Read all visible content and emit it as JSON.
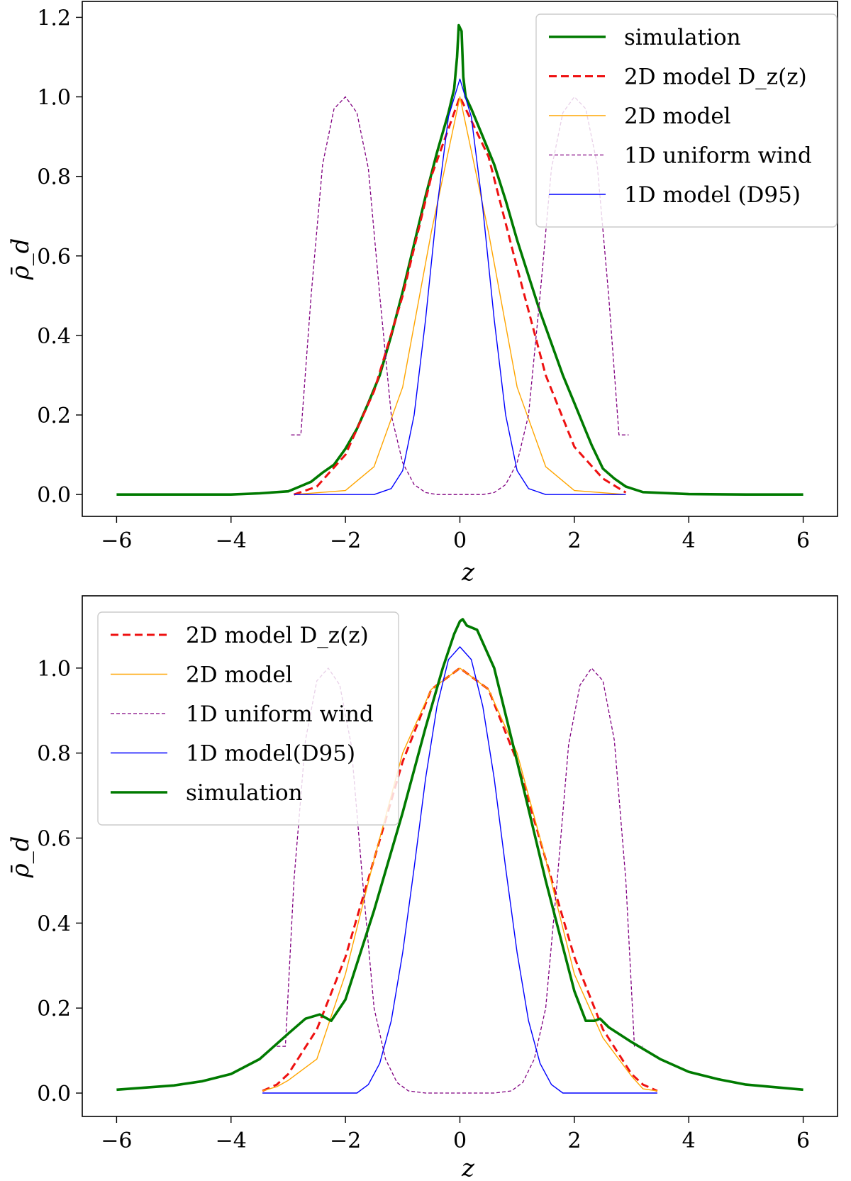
{
  "chart_data": [
    {
      "type": "line",
      "panel": "top",
      "xlabel": "z",
      "ylabel": "ρ̄_d",
      "xlim": [
        -6.6,
        6.6
      ],
      "ylim": [
        -0.055,
        1.24
      ],
      "xticks": [
        -6,
        -4,
        -2,
        0,
        2,
        4,
        6
      ],
      "xtick_labels": [
        "−6",
        "−4",
        "−2",
        "0",
        "2",
        "4",
        "6"
      ],
      "yticks": [
        0.0,
        0.2,
        0.4,
        0.6,
        0.8,
        1.0,
        1.2
      ],
      "ytick_labels": [
        "0.0",
        "0.2",
        "0.4",
        "0.6",
        "0.8",
        "1.0",
        "1.2"
      ],
      "legend_position": "upper right",
      "series": [
        {
          "name": "simulation",
          "legend_label": "simulation",
          "color": "#007a00",
          "style": "solid-thick",
          "points": [
            [
              -6,
              0
            ],
            [
              -5,
              0
            ],
            [
              -4,
              0
            ],
            [
              -3.5,
              0.003
            ],
            [
              -3,
              0.008
            ],
            [
              -2.8,
              0.02
            ],
            [
              -2.6,
              0.032
            ],
            [
              -2.4,
              0.055
            ],
            [
              -2.2,
              0.075
            ],
            [
              -2,
              0.115
            ],
            [
              -1.8,
              0.165
            ],
            [
              -1.6,
              0.23
            ],
            [
              -1.4,
              0.3
            ],
            [
              -1.2,
              0.4
            ],
            [
              -1,
              0.51
            ],
            [
              -0.8,
              0.63
            ],
            [
              -0.6,
              0.75
            ],
            [
              -0.4,
              0.86
            ],
            [
              -0.2,
              0.96
            ],
            [
              -0.1,
              1.02
            ],
            [
              -0.05,
              1.1
            ],
            [
              -0.02,
              1.18
            ],
            [
              0.03,
              1.165
            ],
            [
              0.06,
              1.05
            ],
            [
              0.1,
              1.0
            ],
            [
              0.2,
              0.97
            ],
            [
              0.4,
              0.9
            ],
            [
              0.6,
              0.83
            ],
            [
              0.8,
              0.74
            ],
            [
              1,
              0.64
            ],
            [
              1.2,
              0.55
            ],
            [
              1.4,
              0.46
            ],
            [
              1.6,
              0.38
            ],
            [
              1.8,
              0.3
            ],
            [
              2,
              0.23
            ],
            [
              2.2,
              0.16
            ],
            [
              2.3,
              0.125
            ],
            [
              2.4,
              0.095
            ],
            [
              2.5,
              0.065
            ],
            [
              2.7,
              0.04
            ],
            [
              2.9,
              0.02
            ],
            [
              3.2,
              0.006
            ],
            [
              4,
              0.001
            ],
            [
              5,
              0
            ],
            [
              6,
              0
            ]
          ]
        },
        {
          "name": "2d-model-dz",
          "legend_label": "2D model D_z(z)",
          "color": "#ee1111",
          "style": "dashed-thick",
          "points": [
            [
              -2.9,
              0
            ],
            [
              -2.5,
              0.02
            ],
            [
              -2,
              0.1
            ],
            [
              -1.5,
              0.26
            ],
            [
              -1,
              0.5
            ],
            [
              -0.5,
              0.8
            ],
            [
              0,
              1.0
            ],
            [
              0.5,
              0.85
            ],
            [
              1,
              0.57
            ],
            [
              1.5,
              0.3
            ],
            [
              2,
              0.12
            ],
            [
              2.5,
              0.04
            ],
            [
              2.9,
              0.005
            ]
          ]
        },
        {
          "name": "2d-model",
          "legend_label": "2D model",
          "color": "#ffa500",
          "style": "solid-thin",
          "points": [
            [
              -2.9,
              0
            ],
            [
              -2,
              0.01
            ],
            [
              -1.5,
              0.07
            ],
            [
              -1,
              0.27
            ],
            [
              -0.5,
              0.66
            ],
            [
              0,
              1.0
            ],
            [
              0.5,
              0.66
            ],
            [
              1,
              0.27
            ],
            [
              1.5,
              0.07
            ],
            [
              2,
              0.01
            ],
            [
              2.9,
              0
            ]
          ]
        },
        {
          "name": "1d-uniform-wind",
          "legend_label": "1D uniform wind",
          "color": "#800080",
          "style": "dashed-thin",
          "points": [
            [
              -2.95,
              0.15
            ],
            [
              -2.78,
              0.15
            ],
            [
              -2.6,
              0.5
            ],
            [
              -2.4,
              0.83
            ],
            [
              -2.2,
              0.97
            ],
            [
              -2,
              1.0
            ],
            [
              -1.8,
              0.96
            ],
            [
              -1.6,
              0.82
            ],
            [
              -1.4,
              0.5
            ],
            [
              -1.2,
              0.2
            ],
            [
              -1,
              0.08
            ],
            [
              -0.8,
              0.025
            ],
            [
              -0.6,
              0.005
            ],
            [
              -0.4,
              0
            ],
            [
              0,
              0
            ],
            [
              0.4,
              0
            ],
            [
              0.6,
              0.005
            ],
            [
              0.8,
              0.025
            ],
            [
              1,
              0.08
            ],
            [
              1.2,
              0.2
            ],
            [
              1.4,
              0.5
            ],
            [
              1.6,
              0.82
            ],
            [
              1.8,
              0.96
            ],
            [
              2,
              1.0
            ],
            [
              2.2,
              0.97
            ],
            [
              2.4,
              0.83
            ],
            [
              2.6,
              0.5
            ],
            [
              2.78,
              0.15
            ],
            [
              2.95,
              0.15
            ]
          ]
        },
        {
          "name": "1d-model-d95",
          "legend_label": "1D model (D95)",
          "color": "#0000ff",
          "style": "solid-thin",
          "points": [
            [
              -2.9,
              0
            ],
            [
              -1.5,
              0
            ],
            [
              -1.2,
              0.015
            ],
            [
              -1,
              0.06
            ],
            [
              -0.8,
              0.2
            ],
            [
              -0.6,
              0.44
            ],
            [
              -0.4,
              0.72
            ],
            [
              -0.2,
              0.95
            ],
            [
              0,
              1.045
            ],
            [
              0.2,
              0.95
            ],
            [
              0.4,
              0.72
            ],
            [
              0.6,
              0.44
            ],
            [
              0.8,
              0.2
            ],
            [
              1,
              0.06
            ],
            [
              1.2,
              0.015
            ],
            [
              1.5,
              0
            ],
            [
              2.9,
              0
            ]
          ]
        }
      ]
    },
    {
      "type": "line",
      "panel": "bottom",
      "xlabel": "z",
      "ylabel": "ρ̄_d",
      "xlim": [
        -6.6,
        6.6
      ],
      "ylim": [
        -0.055,
        1.17
      ],
      "xticks": [
        -6,
        -4,
        -2,
        0,
        2,
        4,
        6
      ],
      "xtick_labels": [
        "−6",
        "−4",
        "−2",
        "0",
        "2",
        "4",
        "6"
      ],
      "yticks": [
        0.0,
        0.2,
        0.4,
        0.6,
        0.8,
        1.0
      ],
      "ytick_labels": [
        "0.0",
        "0.2",
        "0.4",
        "0.6",
        "0.8",
        "1.0"
      ],
      "legend_position": "upper left",
      "series": [
        {
          "name": "2d-model-dz",
          "legend_label": "2D model D_z(z)",
          "color": "#ee1111",
          "style": "dashed-thick",
          "points": [
            [
              -3.45,
              0.005
            ],
            [
              -3.2,
              0.02
            ],
            [
              -3,
              0.045
            ],
            [
              -2.5,
              0.15
            ],
            [
              -2,
              0.32
            ],
            [
              -1.5,
              0.55
            ],
            [
              -1,
              0.78
            ],
            [
              -0.5,
              0.95
            ],
            [
              0,
              1.0
            ],
            [
              0.5,
              0.95
            ],
            [
              1,
              0.78
            ],
            [
              1.5,
              0.55
            ],
            [
              2,
              0.32
            ],
            [
              2.5,
              0.15
            ],
            [
              3,
              0.045
            ],
            [
              3.2,
              0.02
            ],
            [
              3.45,
              0.005
            ]
          ]
        },
        {
          "name": "2d-model",
          "legend_label": "2D model",
          "color": "#ffa500",
          "style": "solid-thin",
          "points": [
            [
              -3.45,
              0.005
            ],
            [
              -3.2,
              0.015
            ],
            [
              -3,
              0.03
            ],
            [
              -2.5,
              0.08
            ],
            [
              -2,
              0.28
            ],
            [
              -1.5,
              0.55
            ],
            [
              -1,
              0.8
            ],
            [
              -0.5,
              0.95
            ],
            [
              0,
              1.0
            ],
            [
              0.5,
              0.95
            ],
            [
              1,
              0.8
            ],
            [
              1.5,
              0.55
            ],
            [
              2,
              0.28
            ],
            [
              2.5,
              0.13
            ],
            [
              3,
              0.04
            ],
            [
              3.2,
              0.01
            ],
            [
              3.45,
              0.005
            ]
          ]
        },
        {
          "name": "1d-uniform-wind",
          "legend_label": "1D uniform wind",
          "color": "#800080",
          "style": "dashed-thin",
          "points": [
            [
              -3.2,
              0.11
            ],
            [
              -3.05,
              0.11
            ],
            [
              -2.9,
              0.5
            ],
            [
              -2.7,
              0.83
            ],
            [
              -2.5,
              0.97
            ],
            [
              -2.3,
              1.0
            ],
            [
              -2.1,
              0.96
            ],
            [
              -1.9,
              0.82
            ],
            [
              -1.7,
              0.5
            ],
            [
              -1.5,
              0.2
            ],
            [
              -1.3,
              0.08
            ],
            [
              -1.1,
              0.025
            ],
            [
              -0.9,
              0.005
            ],
            [
              -0.6,
              0
            ],
            [
              0,
              0
            ],
            [
              0.6,
              0
            ],
            [
              0.9,
              0.005
            ],
            [
              1.1,
              0.025
            ],
            [
              1.3,
              0.08
            ],
            [
              1.5,
              0.2
            ],
            [
              1.7,
              0.5
            ],
            [
              1.9,
              0.82
            ],
            [
              2.1,
              0.96
            ],
            [
              2.3,
              1.0
            ],
            [
              2.5,
              0.97
            ],
            [
              2.7,
              0.83
            ],
            [
              2.9,
              0.5
            ],
            [
              3.05,
              0.11
            ],
            [
              3.2,
              0.11
            ]
          ]
        },
        {
          "name": "1d-model-d95",
          "legend_label": "1D model(D95)",
          "color": "#0000ff",
          "style": "solid-thin",
          "points": [
            [
              -3.45,
              0
            ],
            [
              -1.8,
              0
            ],
            [
              -1.6,
              0.02
            ],
            [
              -1.4,
              0.07
            ],
            [
              -1.2,
              0.17
            ],
            [
              -1,
              0.33
            ],
            [
              -0.8,
              0.53
            ],
            [
              -0.6,
              0.74
            ],
            [
              -0.4,
              0.91
            ],
            [
              -0.2,
              1.02
            ],
            [
              0,
              1.05
            ],
            [
              0.2,
              1.02
            ],
            [
              0.4,
              0.91
            ],
            [
              0.6,
              0.74
            ],
            [
              0.8,
              0.53
            ],
            [
              1,
              0.33
            ],
            [
              1.2,
              0.17
            ],
            [
              1.4,
              0.07
            ],
            [
              1.6,
              0.02
            ],
            [
              1.8,
              0
            ],
            [
              3.45,
              0
            ]
          ]
        },
        {
          "name": "simulation",
          "legend_label": "simulation",
          "color": "#007a00",
          "style": "solid-thick",
          "points": [
            [
              -6,
              0.008
            ],
            [
              -5,
              0.018
            ],
            [
              -4.5,
              0.028
            ],
            [
              -4,
              0.045
            ],
            [
              -3.5,
              0.08
            ],
            [
              -3,
              0.14
            ],
            [
              -2.7,
              0.175
            ],
            [
              -2.45,
              0.185
            ],
            [
              -2.25,
              0.17
            ],
            [
              -2,
              0.22
            ],
            [
              -1.5,
              0.43
            ],
            [
              -1,
              0.66
            ],
            [
              -0.6,
              0.86
            ],
            [
              -0.3,
              1.0
            ],
            [
              -0.1,
              1.08
            ],
            [
              0,
              1.11
            ],
            [
              0.05,
              1.115
            ],
            [
              0.12,
              1.1
            ],
            [
              0.3,
              1.09
            ],
            [
              0.6,
              1.0
            ],
            [
              1,
              0.78
            ],
            [
              1.5,
              0.5
            ],
            [
              2,
              0.24
            ],
            [
              2.2,
              0.17
            ],
            [
              2.35,
              0.17
            ],
            [
              2.45,
              0.175
            ],
            [
              2.6,
              0.155
            ],
            [
              3,
              0.12
            ],
            [
              3.5,
              0.08
            ],
            [
              4,
              0.05
            ],
            [
              4.5,
              0.033
            ],
            [
              5,
              0.02
            ],
            [
              6,
              0.008
            ]
          ]
        }
      ]
    }
  ]
}
